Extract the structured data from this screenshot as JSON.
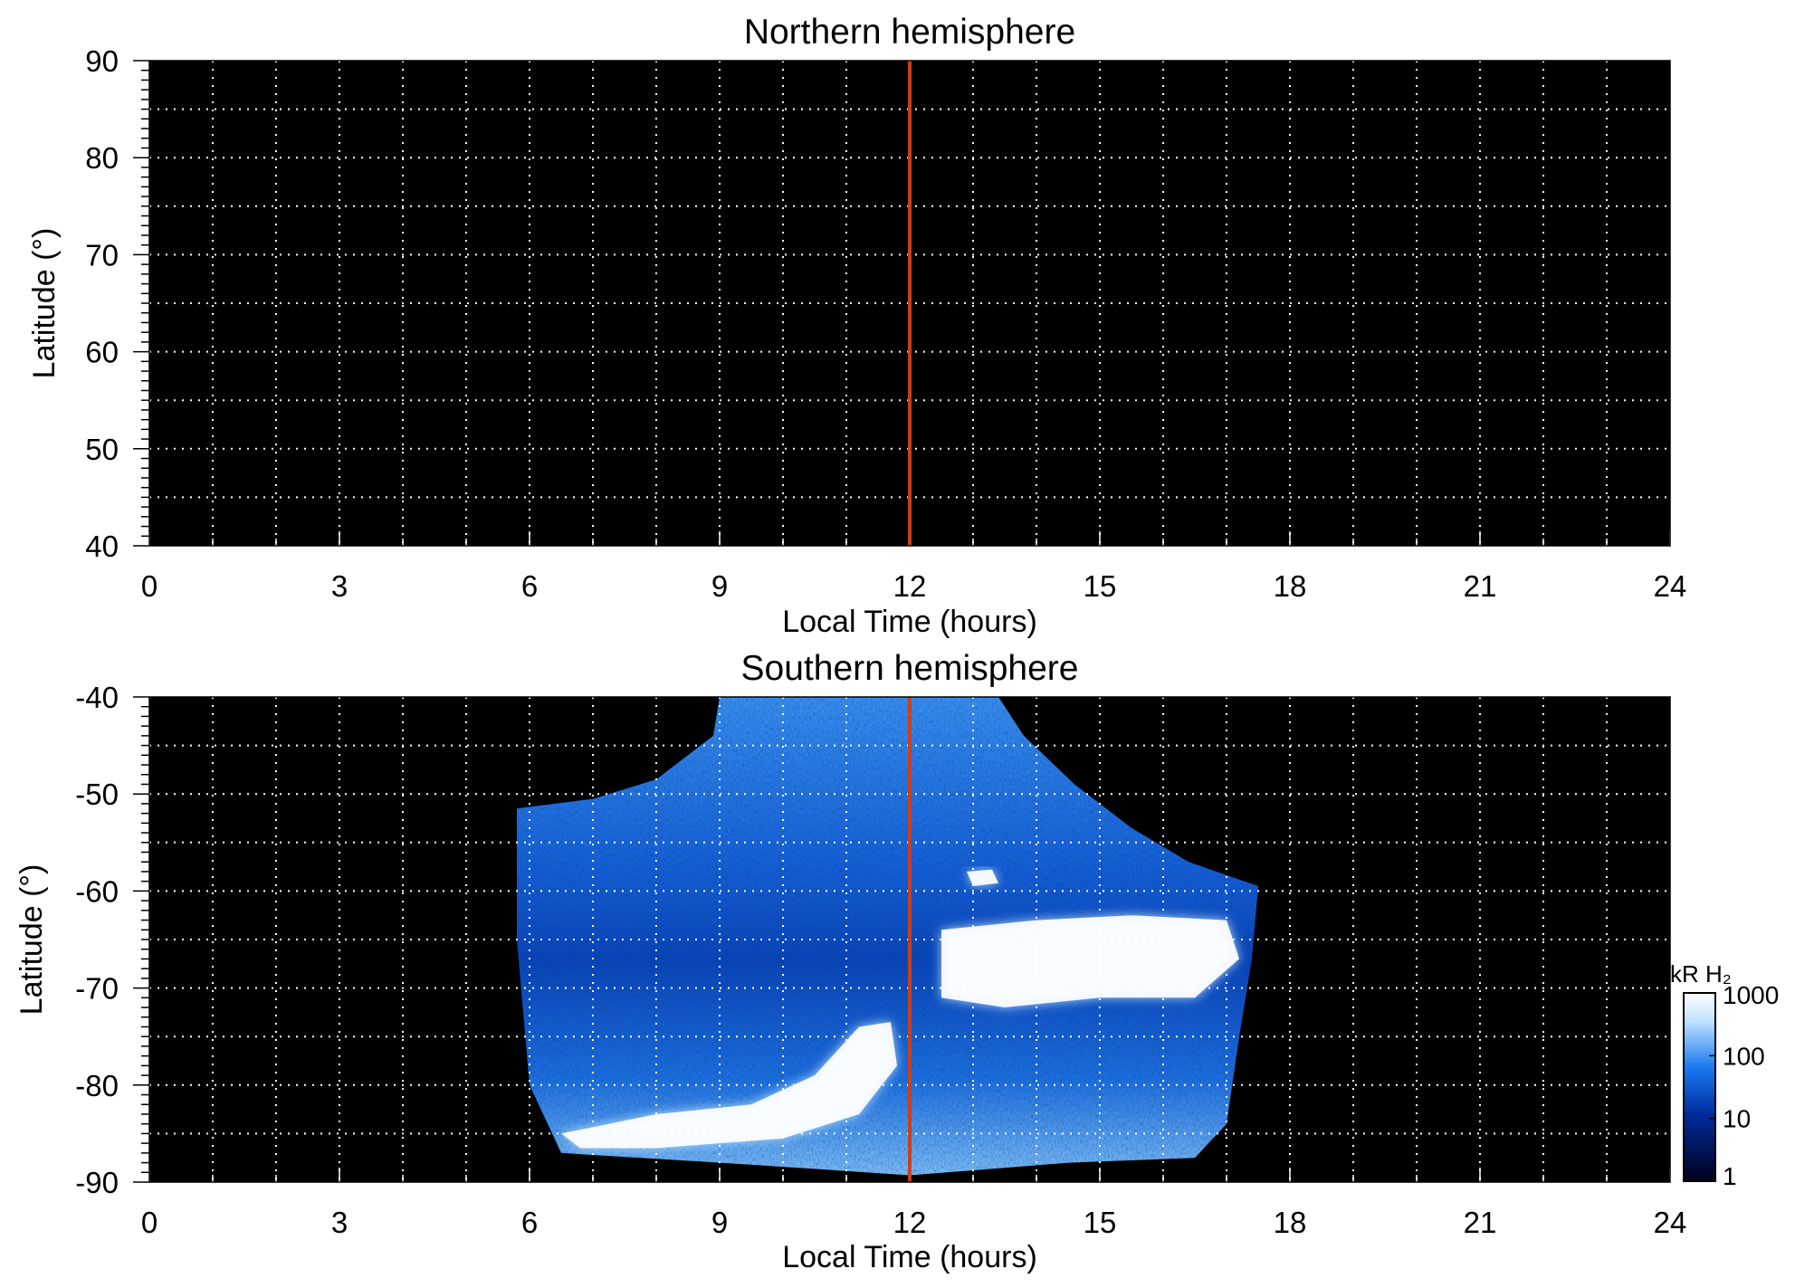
{
  "chart_data": [
    {
      "type": "heatmap",
      "title": "Northern hemisphere",
      "xlabel": "Local Time (hours)",
      "ylabel": "Latitude (°)",
      "xlim": [
        0,
        24
      ],
      "ylim": [
        40,
        90
      ],
      "x_ticks": [
        "0",
        "3",
        "6",
        "9",
        "12",
        "15",
        "18",
        "21",
        "24"
      ],
      "y_ticks": [
        "40",
        "50",
        "60",
        "70",
        "80",
        "90"
      ],
      "grid": true,
      "grid_x_step": 1,
      "grid_y_step": 5,
      "reference_line": {
        "x": 12,
        "color": "#c8401f"
      },
      "emission": "none (no coverage)",
      "background_color": "#000000"
    },
    {
      "type": "heatmap",
      "title": "Southern hemisphere",
      "xlabel": "Local Time (hours)",
      "ylabel": "Latitude (°)",
      "xlim": [
        0,
        24
      ],
      "ylim": [
        -90,
        -40
      ],
      "x_ticks": [
        "0",
        "3",
        "6",
        "9",
        "12",
        "15",
        "18",
        "21",
        "24"
      ],
      "y_ticks": [
        "-40",
        "-50",
        "-60",
        "-70",
        "-80",
        "-90"
      ],
      "grid": true,
      "grid_x_step": 1,
      "grid_y_step": 5,
      "reference_line": {
        "x": 12,
        "color": "#c8401f"
      },
      "background_color": "#000000",
      "coverage_boundary": [
        {
          "lt": 5.8,
          "lat": -51.5
        },
        {
          "lt": 7.0,
          "lat": -50.5
        },
        {
          "lt": 8.0,
          "lat": -48.5
        },
        {
          "lt": 8.9,
          "lat": -44.0
        },
        {
          "lt": 9.0,
          "lat": -40.0
        },
        {
          "lt": 13.4,
          "lat": -40.0
        },
        {
          "lt": 13.8,
          "lat": -44.0
        },
        {
          "lt": 14.6,
          "lat": -49.0
        },
        {
          "lt": 15.5,
          "lat": -53.5
        },
        {
          "lt": 16.4,
          "lat": -57.0
        },
        {
          "lt": 17.5,
          "lat": -59.5
        },
        {
          "lt": 17.4,
          "lat": -67.0
        },
        {
          "lt": 17.2,
          "lat": -75.0
        },
        {
          "lt": 17.0,
          "lat": -84.0
        },
        {
          "lt": 16.5,
          "lat": -87.5
        },
        {
          "lt": 14.5,
          "lat": -88.0
        },
        {
          "lt": 12.0,
          "lat": -89.3
        },
        {
          "lt": 9.5,
          "lat": -88.2
        },
        {
          "lt": 6.5,
          "lat": -87.0
        },
        {
          "lt": 6.0,
          "lat": -80.0
        },
        {
          "lt": 5.8,
          "lat": -65.0
        }
      ],
      "bright_features": [
        {
          "name": "dayside auroral arc",
          "intensity_kR": 1000,
          "points": [
            [
              12.5,
              -64
            ],
            [
              14,
              -63
            ],
            [
              15.5,
              -62.5
            ],
            [
              17,
              -63
            ],
            [
              17.2,
              -67
            ],
            [
              16.5,
              -71
            ],
            [
              15,
              -71
            ],
            [
              13.5,
              -72
            ],
            [
              12.5,
              -71
            ]
          ]
        },
        {
          "name": "dawn arc",
          "intensity_kR": 1000,
          "points": [
            [
              6.5,
              -85
            ],
            [
              8,
              -83
            ],
            [
              9.5,
              -82
            ],
            [
              10.5,
              -79
            ],
            [
              11.2,
              -74
            ],
            [
              11.7,
              -73.5
            ],
            [
              11.8,
              -78
            ],
            [
              11.2,
              -83
            ],
            [
              10,
              -85.5
            ],
            [
              8,
              -86.5
            ],
            [
              6.8,
              -86.5
            ]
          ]
        },
        {
          "name": "small spot",
          "intensity_kR": 1000,
          "points": [
            [
              12.9,
              -58
            ],
            [
              13.3,
              -57.8
            ],
            [
              13.4,
              -59.2
            ],
            [
              13,
              -59.5
            ]
          ]
        }
      ],
      "colorbar": {
        "label": "kR H₂",
        "scale": "log",
        "range": [
          1,
          1000
        ],
        "ticks": [
          "1000",
          "100",
          "10",
          "1"
        ],
        "colors": [
          "#00001a",
          "#002a9c",
          "#1778f0",
          "#bfe2ff",
          "#ffffff"
        ]
      }
    }
  ]
}
